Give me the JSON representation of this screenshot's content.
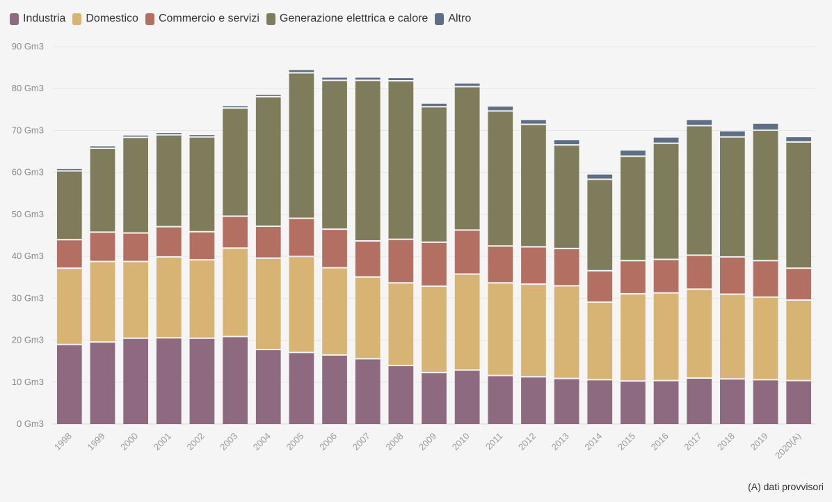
{
  "legend": {
    "items": [
      {
        "label": "Industria",
        "color": "#8e6a80"
      },
      {
        "label": "Domestico",
        "color": "#d8b474"
      },
      {
        "label": "Commercio e servizi",
        "color": "#b37062"
      },
      {
        "label": "Generazione elettrica e calore",
        "color": "#7e7c5a"
      },
      {
        "label": "Altro",
        "color": "#5e6e85"
      }
    ]
  },
  "footnote": "(A) dati provvisori",
  "chart_data": {
    "type": "bar",
    "stacked": true,
    "title": "",
    "xlabel": "",
    "ylabel": "",
    "ylim": [
      0,
      90
    ],
    "yticks": [
      0,
      10,
      20,
      30,
      40,
      50,
      60,
      70,
      80,
      90
    ],
    "ytick_labels": [
      "0 Gm3",
      "10 Gm3",
      "20 Gm3",
      "30 Gm3",
      "40 Gm3",
      "50 Gm3",
      "60 Gm3",
      "70 Gm3",
      "80 Gm3",
      "90 Gm3"
    ],
    "grid": true,
    "legend_position": "top-left",
    "categories": [
      "1998",
      "1999",
      "2000",
      "2001",
      "2002",
      "2003",
      "2004",
      "2005",
      "2006",
      "2007",
      "2008",
      "2009",
      "2010",
      "2011",
      "2012",
      "2013",
      "2014",
      "2015",
      "2016",
      "2017",
      "2018",
      "2019",
      "2020(A)"
    ],
    "series": [
      {
        "name": "Industria",
        "color": "#8e6a80",
        "values": [
          18.8,
          19.4,
          20.3,
          20.4,
          20.3,
          20.7,
          17.6,
          16.9,
          16.3,
          15.4,
          13.8,
          12.1,
          12.7,
          11.4,
          11.1,
          10.7,
          10.4,
          10.1,
          10.2,
          10.8,
          10.6,
          10.4,
          10.2
        ]
      },
      {
        "name": "Domestico",
        "color": "#d8b474",
        "values": [
          18.2,
          19.2,
          18.3,
          19.3,
          18.7,
          21.1,
          21.8,
          22.9,
          20.8,
          19.5,
          19.7,
          20.6,
          22.9,
          22.1,
          22.1,
          22.1,
          18.5,
          20.8,
          20.9,
          21.2,
          20.2,
          19.7,
          19.2
        ]
      },
      {
        "name": "Commercio e servizi",
        "color": "#b37062",
        "values": [
          6.8,
          7.0,
          6.8,
          7.2,
          6.7,
          7.6,
          7.6,
          9.1,
          9.2,
          8.6,
          10.4,
          10.5,
          10.5,
          8.8,
          8.9,
          8.9,
          7.5,
          7.9,
          8.0,
          8.1,
          8.9,
          8.7,
          7.6
        ]
      },
      {
        "name": "Generazione elettrica e calore",
        "color": "#7e7c5a",
        "values": [
          16.4,
          20.0,
          22.8,
          21.9,
          22.6,
          25.8,
          30.9,
          34.7,
          35.5,
          38.3,
          37.8,
          32.3,
          34.2,
          32.2,
          29.2,
          24.7,
          21.8,
          24.9,
          27.7,
          30.9,
          28.6,
          31.1,
          30.1
        ]
      },
      {
        "name": "Altro",
        "color": "#5e6e85",
        "values": [
          0.6,
          0.6,
          0.6,
          0.6,
          0.6,
          0.6,
          0.6,
          0.8,
          0.8,
          0.8,
          0.8,
          0.9,
          0.9,
          1.2,
          1.2,
          1.3,
          1.3,
          1.5,
          1.5,
          1.5,
          1.5,
          1.7,
          1.3
        ]
      }
    ]
  }
}
